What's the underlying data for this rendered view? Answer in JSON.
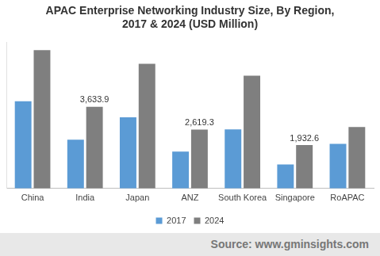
{
  "chart_data": {
    "type": "bar",
    "title": [
      "APAC Enterprise Networking Industry Size, By Region,",
      "2017 & 2024 (USD Million)"
    ],
    "categories": [
      "China",
      "India",
      "Japan",
      "ANZ",
      "South Korea",
      "Singapore",
      "RoAPAC"
    ],
    "series": [
      {
        "name": "2017",
        "color": "#5b9bd5",
        "values": [
          3880,
          2170,
          3170,
          1640,
          2630,
          1070,
          1990
        ]
      },
      {
        "name": "2024",
        "color": "#7f7f7f",
        "values": [
          6160,
          3633.9,
          5550,
          2619.3,
          5020,
          1932.6,
          2740
        ],
        "value_labels": [
          null,
          "3,633.9",
          null,
          "2,619.3",
          null,
          "1,932.6",
          null
        ]
      }
    ],
    "ylim": [
      0,
      6500
    ],
    "grid": false,
    "legend": "bottom",
    "data_labels": true,
    "tick_labels": "x",
    "source": "Source: www.gminsights.com"
  }
}
